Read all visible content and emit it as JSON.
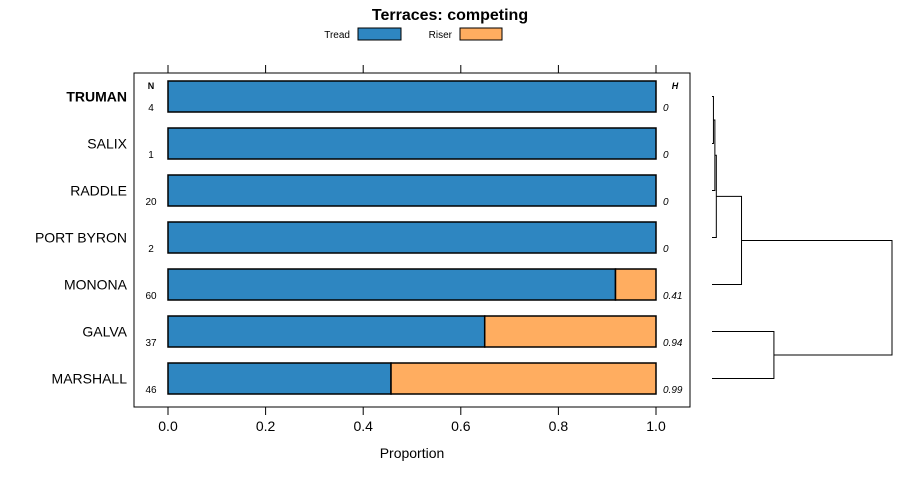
{
  "chart_data": {
    "type": "bar",
    "stacked": true,
    "orientation": "horizontal",
    "title": "Terraces: competing",
    "xlabel": "Proportion",
    "xlim": [
      -0.07,
      1.07
    ],
    "xticks": [
      "0.0",
      "0.2",
      "0.4",
      "0.6",
      "0.8",
      "1.0"
    ],
    "xtick_values": [
      0,
      0.2,
      0.4,
      0.6,
      0.8,
      1.0
    ],
    "legend_position": "top",
    "grid": false,
    "n_header": "N",
    "h_header": "H",
    "categories": [
      "TRUMAN",
      "SALIX",
      "RADDLE",
      "PORT BYRON",
      "MONONA",
      "GALVA",
      "MARSHALL"
    ],
    "highlighted_category": "TRUMAN",
    "n_values": [
      "4",
      "1",
      "20",
      "2",
      "60",
      "37",
      "46"
    ],
    "h_values": [
      "0",
      "0",
      "0",
      "0",
      "0.41",
      "0.94",
      "0.99"
    ],
    "series": [
      {
        "name": "Tread",
        "color": "#2e86c1",
        "values": [
          1.0,
          1.0,
          1.0,
          1.0,
          0.917,
          0.649,
          0.457
        ]
      },
      {
        "name": "Riser",
        "color": "#ffad60",
        "values": [
          0.0,
          0.0,
          0.0,
          0.0,
          0.083,
          0.351,
          0.543
        ]
      }
    ],
    "dendrogram": {
      "leaves": [
        "TRUMAN",
        "SALIX",
        "RADDLE",
        "PORT BYRON",
        "MONONA",
        "GALVA",
        "MARSHALL"
      ],
      "merges": [
        {
          "a": "TRUMAN",
          "b": "SALIX",
          "height": 0.02
        },
        {
          "a": "m0",
          "b": "RADDLE",
          "height": 0.04
        },
        {
          "a": "m1",
          "b": "PORT BYRON",
          "height": 0.06
        },
        {
          "a": "m2",
          "b": "MONONA",
          "height": 0.41
        },
        {
          "a": "GALVA",
          "b": "MARSHALL",
          "height": 0.86
        },
        {
          "a": "m3",
          "b": "m4",
          "height": 2.5
        }
      ],
      "max_height": 2.5
    }
  }
}
